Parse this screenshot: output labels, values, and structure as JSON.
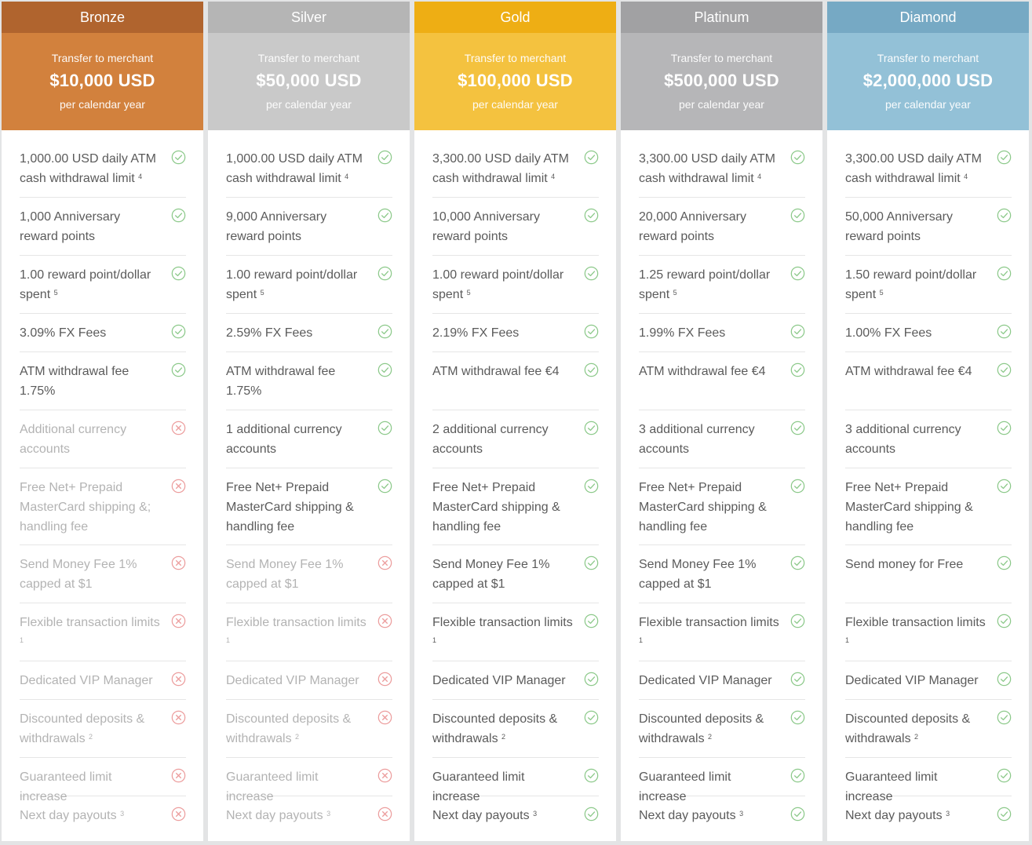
{
  "colors": {
    "check": "#8cc98a",
    "cross": "#ec9d9d"
  },
  "tiers": [
    {
      "name": "Bronze",
      "name_bg": "#b0642e",
      "head_bg": "#d2813d",
      "transfer_label": "Transfer to merchant",
      "amount": "$10,000 USD",
      "period": "per calendar year",
      "features": [
        {
          "text": "1,000.00 USD daily ATM cash withdrawal limit",
          "sup": "4",
          "status": "check"
        },
        {
          "text": "1,000 Anniversary reward points",
          "sup": "",
          "status": "check"
        },
        {
          "text": "1.00 reward point/dollar spent",
          "sup": "5",
          "status": "check"
        },
        {
          "text": "3.09% FX Fees",
          "sup": "",
          "status": "check"
        },
        {
          "text": "ATM withdrawal fee 1.75%",
          "sup": "",
          "status": "check"
        },
        {
          "text": "Additional currency accounts",
          "sup": "",
          "status": "cross"
        },
        {
          "text": "Free Net+ Prepaid MasterCard shipping &; handling fee",
          "sup": "",
          "status": "cross"
        },
        {
          "text": "Send Money Fee 1% capped at $1",
          "sup": "",
          "status": "cross"
        },
        {
          "text": "Flexible transaction limits",
          "sup": "1",
          "status": "cross"
        },
        {
          "text": "Dedicated VIP Manager",
          "sup": "",
          "status": "cross"
        },
        {
          "text": "Discounted deposits & withdrawals",
          "sup": "2",
          "status": "cross"
        },
        {
          "text": "Guaranteed limit increase",
          "sup": "",
          "status": "cross"
        },
        {
          "text": "Next day payouts",
          "sup": "3",
          "status": "cross"
        }
      ]
    },
    {
      "name": "Silver",
      "name_bg": "#b5b5b5",
      "head_bg": "#c9c9c9",
      "transfer_label": "Transfer to merchant",
      "amount": "$50,000 USD",
      "period": "per calendar year",
      "features": [
        {
          "text": "1,000.00 USD daily ATM cash withdrawal limit",
          "sup": "4",
          "status": "check"
        },
        {
          "text": "9,000 Anniversary reward points",
          "sup": "",
          "status": "check"
        },
        {
          "text": "1.00 reward point/dollar spent",
          "sup": "5",
          "status": "check"
        },
        {
          "text": "2.59% FX Fees",
          "sup": "",
          "status": "check"
        },
        {
          "text": "ATM withdrawal fee 1.75%",
          "sup": "",
          "status": "check"
        },
        {
          "text": "1 additional currency accounts",
          "sup": "",
          "status": "check"
        },
        {
          "text": "Free Net+ Prepaid MasterCard shipping & handling fee",
          "sup": "",
          "status": "check"
        },
        {
          "text": "Send Money Fee 1% capped at $1",
          "sup": "",
          "status": "cross"
        },
        {
          "text": "Flexible transaction limits",
          "sup": "1",
          "status": "cross"
        },
        {
          "text": "Dedicated VIP Manager",
          "sup": "",
          "status": "cross"
        },
        {
          "text": "Discounted deposits & withdrawals",
          "sup": "2",
          "status": "cross"
        },
        {
          "text": "Guaranteed limit increase",
          "sup": "",
          "status": "cross"
        },
        {
          "text": "Next day payouts",
          "sup": "3",
          "status": "cross"
        }
      ]
    },
    {
      "name": "Gold",
      "name_bg": "#eeae14",
      "head_bg": "#f4c23f",
      "transfer_label": "Transfer to merchant",
      "amount": "$100,000 USD",
      "period": "per calendar year",
      "features": [
        {
          "text": "3,300.00 USD daily ATM cash withdrawal limit",
          "sup": "4",
          "status": "check"
        },
        {
          "text": "10,000 Anniversary reward points",
          "sup": "",
          "status": "check"
        },
        {
          "text": "1.00 reward point/dollar spent",
          "sup": "5",
          "status": "check"
        },
        {
          "text": "2.19% FX Fees",
          "sup": "",
          "status": "check"
        },
        {
          "text": "ATM withdrawal fee €4",
          "sup": "",
          "status": "check"
        },
        {
          "text": "2 additional currency accounts",
          "sup": "",
          "status": "check"
        },
        {
          "text": "Free Net+ Prepaid MasterCard shipping & handling fee",
          "sup": "",
          "status": "check"
        },
        {
          "text": "Send Money Fee 1% capped at $1",
          "sup": "",
          "status": "check"
        },
        {
          "text": "Flexible transaction limits",
          "sup": "1",
          "status": "check"
        },
        {
          "text": "Dedicated VIP Manager",
          "sup": "",
          "status": "check"
        },
        {
          "text": "Discounted deposits & withdrawals",
          "sup": "2",
          "status": "check"
        },
        {
          "text": "Guaranteed limit increase",
          "sup": "",
          "status": "check"
        },
        {
          "text": "Next day payouts",
          "sup": "3",
          "status": "check"
        }
      ]
    },
    {
      "name": "Platinum",
      "name_bg": "#a1a1a3",
      "head_bg": "#b6b6b8",
      "transfer_label": "Transfer to merchant",
      "amount": "$500,000 USD",
      "period": "per calendar year",
      "features": [
        {
          "text": "3,300.00 USD daily ATM cash withdrawal limit",
          "sup": "4",
          "status": "check"
        },
        {
          "text": "20,000 Anniversary reward points",
          "sup": "",
          "status": "check"
        },
        {
          "text": "1.25 reward point/dollar spent",
          "sup": "5",
          "status": "check"
        },
        {
          "text": "1.99% FX Fees",
          "sup": "",
          "status": "check"
        },
        {
          "text": "ATM withdrawal fee €4",
          "sup": "",
          "status": "check"
        },
        {
          "text": "3 additional currency accounts",
          "sup": "",
          "status": "check"
        },
        {
          "text": "Free Net+ Prepaid MasterCard shipping & handling fee",
          "sup": "",
          "status": "check"
        },
        {
          "text": "Send Money Fee 1% capped at $1",
          "sup": "",
          "status": "check"
        },
        {
          "text": "Flexible transaction limits",
          "sup": "1",
          "status": "check"
        },
        {
          "text": "Dedicated VIP Manager",
          "sup": "",
          "status": "check"
        },
        {
          "text": "Discounted deposits & withdrawals",
          "sup": "2",
          "status": "check"
        },
        {
          "text": "Guaranteed limit increase",
          "sup": "",
          "status": "check"
        },
        {
          "text": "Next day payouts",
          "sup": "3",
          "status": "check"
        }
      ]
    },
    {
      "name": "Diamond",
      "name_bg": "#76a9c4",
      "head_bg": "#93c1d7",
      "transfer_label": "Transfer to merchant",
      "amount": "$2,000,000 USD",
      "period": "per calendar year",
      "features": [
        {
          "text": "3,300.00 USD daily ATM cash withdrawal limit",
          "sup": "4",
          "status": "check"
        },
        {
          "text": "50,000 Anniversary reward points",
          "sup": "",
          "status": "check"
        },
        {
          "text": "1.50 reward point/dollar spent",
          "sup": "5",
          "status": "check"
        },
        {
          "text": "1.00% FX Fees",
          "sup": "",
          "status": "check"
        },
        {
          "text": "ATM withdrawal fee €4",
          "sup": "",
          "status": "check"
        },
        {
          "text": "3 additional currency accounts",
          "sup": "",
          "status": "check"
        },
        {
          "text": "Free Net+ Prepaid MasterCard shipping & handling fee",
          "sup": "",
          "status": "check"
        },
        {
          "text": "Send money for Free",
          "sup": "",
          "status": "check"
        },
        {
          "text": "Flexible transaction limits",
          "sup": "1",
          "status": "check"
        },
        {
          "text": "Dedicated VIP Manager",
          "sup": "",
          "status": "check"
        },
        {
          "text": "Discounted deposits & withdrawals",
          "sup": "2",
          "status": "check"
        },
        {
          "text": "Guaranteed limit increase",
          "sup": "",
          "status": "check"
        },
        {
          "text": "Next day payouts",
          "sup": "3",
          "status": "check"
        }
      ]
    }
  ]
}
